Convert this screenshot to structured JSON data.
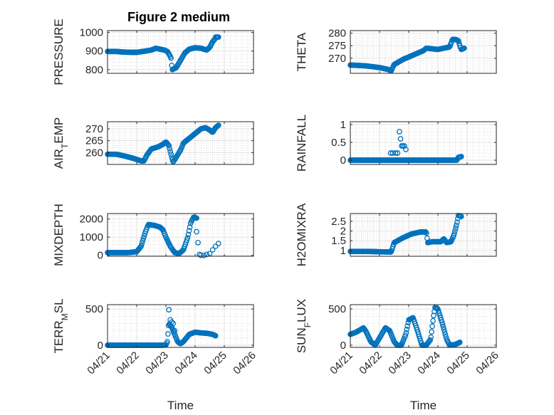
{
  "figure": {
    "title": "Figure 2 medium"
  },
  "chart_data": [
    {
      "type": "scatter",
      "id": "pressure",
      "title": "Figure 2 medium",
      "ylabel": "PRESSURE",
      "xlabel": "",
      "xlim": [
        0,
        5
      ],
      "ylim": [
        780,
        1010
      ],
      "yticks": [
        800,
        900,
        1000
      ],
      "ytick_labels": [
        "800",
        "900",
        "1000"
      ],
      "xtick_labels": [],
      "grid": true,
      "color": "#0072BD",
      "anchors": [
        [
          0,
          898
        ],
        [
          0.3,
          898
        ],
        [
          0.5,
          895
        ],
        [
          0.8,
          893
        ],
        [
          1.0,
          893
        ],
        [
          1.3,
          900
        ],
        [
          1.5,
          905
        ],
        [
          1.65,
          915
        ],
        [
          1.8,
          910
        ],
        [
          1.95,
          905
        ],
        [
          2.05,
          898
        ],
        [
          2.12,
          880
        ],
        [
          2.18,
          860
        ],
        [
          2.2,
          820
        ],
        [
          2.22,
          800
        ],
        [
          2.35,
          810
        ],
        [
          2.5,
          850
        ],
        [
          2.65,
          890
        ],
        [
          2.8,
          910
        ],
        [
          3.0,
          918
        ],
        [
          3.2,
          915
        ],
        [
          3.4,
          905
        ],
        [
          3.5,
          920
        ],
        [
          3.6,
          950
        ],
        [
          3.68,
          965
        ],
        [
          3.7,
          975
        ],
        [
          3.8,
          975
        ]
      ],
      "count": 160
    },
    {
      "type": "scatter",
      "id": "theta",
      "ylabel": "THETA",
      "xlabel": "",
      "xlim": [
        0,
        5
      ],
      "ylim": [
        264,
        281
      ],
      "yticks": [
        270,
        275,
        280
      ],
      "ytick_labels": [
        "270",
        "275",
        "280"
      ],
      "xtick_labels": [],
      "grid": true,
      "color": "#0072BD",
      "anchors": [
        [
          0,
          267.3
        ],
        [
          0.5,
          267
        ],
        [
          1.0,
          266.3
        ],
        [
          1.3,
          265.5
        ],
        [
          1.4,
          265
        ],
        [
          1.5,
          267.5
        ],
        [
          1.8,
          269.5
        ],
        [
          2.2,
          271.5
        ],
        [
          2.5,
          273
        ],
        [
          2.6,
          274
        ],
        [
          3.0,
          273.5
        ],
        [
          3.4,
          274.5
        ],
        [
          3.5,
          277.5
        ],
        [
          3.6,
          277.5
        ],
        [
          3.7,
          277
        ],
        [
          3.75,
          275
        ],
        [
          3.8,
          273.5
        ],
        [
          3.9,
          274
        ]
      ],
      "count": 160
    },
    {
      "type": "scatter",
      "id": "airtemp",
      "ylabel": "AIR_TEMP",
      "xlabel": "",
      "xlim": [
        0,
        5
      ],
      "ylim": [
        255,
        273
      ],
      "yticks": [
        260,
        265,
        270
      ],
      "ytick_labels": [
        "260",
        "265",
        "270"
      ],
      "xtick_labels": [],
      "grid": true,
      "color": "#0072BD",
      "anchors": [
        [
          0,
          259.3
        ],
        [
          0.3,
          259.3
        ],
        [
          0.6,
          258.5
        ],
        [
          0.9,
          257.5
        ],
        [
          1.15,
          256.5
        ],
        [
          1.25,
          256.5
        ],
        [
          1.35,
          259
        ],
        [
          1.5,
          261.5
        ],
        [
          1.75,
          262.5
        ],
        [
          1.9,
          263.5
        ],
        [
          2.0,
          264.5
        ],
        [
          2.1,
          263
        ],
        [
          2.2,
          258
        ],
        [
          2.25,
          256
        ],
        [
          2.35,
          258
        ],
        [
          2.5,
          261
        ],
        [
          2.6,
          264
        ],
        [
          2.8,
          266
        ],
        [
          3.0,
          268
        ],
        [
          3.2,
          270
        ],
        [
          3.35,
          270.5
        ],
        [
          3.5,
          269.5
        ],
        [
          3.6,
          268.5
        ],
        [
          3.7,
          270.5
        ],
        [
          3.8,
          271.5
        ]
      ],
      "count": 160
    },
    {
      "type": "scatter",
      "id": "rainfall",
      "ylabel": "RAINFALL",
      "xlabel": "",
      "xlim": [
        0,
        5
      ],
      "ylim": [
        -0.12,
        1.08
      ],
      "yticks": [
        0,
        0.5,
        1
      ],
      "ytick_labels": [
        "0",
        "0.5",
        "1"
      ],
      "xtick_labels": [],
      "grid": true,
      "color": "#0072BD",
      "anchors": [
        [
          0,
          0
        ],
        [
          3.65,
          0
        ],
        [
          3.7,
          0.08
        ],
        [
          3.8,
          0.1
        ]
      ],
      "count": 150,
      "extra_points": [
        [
          1.38,
          0.2
        ],
        [
          1.45,
          0.2
        ],
        [
          1.55,
          0.2
        ],
        [
          1.62,
          0.2
        ],
        [
          1.68,
          0.8
        ],
        [
          1.72,
          0.6
        ],
        [
          1.76,
          0.4
        ],
        [
          1.8,
          0.4
        ],
        [
          1.85,
          0.4
        ],
        [
          1.9,
          0.3
        ],
        [
          1.64,
          0.0
        ],
        [
          1.75,
          0.0
        ]
      ]
    },
    {
      "type": "scatter",
      "id": "mixdepth",
      "ylabel": "MIXDEPTH",
      "xlabel": "",
      "xlim": [
        0,
        5
      ],
      "ylim": [
        -50,
        2300
      ],
      "yticks": [
        0,
        1000,
        2000
      ],
      "ytick_labels": [
        "0",
        "1000",
        "2000"
      ],
      "xtick_labels": [],
      "grid": true,
      "color": "#0072BD",
      "anchors": [
        [
          0,
          150
        ],
        [
          0.7,
          150
        ],
        [
          1.0,
          200
        ],
        [
          1.15,
          500
        ],
        [
          1.3,
          1300
        ],
        [
          1.4,
          1700
        ],
        [
          1.6,
          1650
        ],
        [
          1.8,
          1550
        ],
        [
          1.9,
          1400
        ],
        [
          2.0,
          1000
        ],
        [
          2.15,
          500
        ],
        [
          2.3,
          150
        ],
        [
          2.45,
          100
        ],
        [
          2.6,
          300
        ],
        [
          2.75,
          1000
        ],
        [
          2.85,
          1800
        ],
        [
          2.95,
          2100
        ],
        [
          3.05,
          2050
        ]
      ],
      "count": 120,
      "extra_points": [
        [
          3.05,
          1300
        ],
        [
          3.1,
          700
        ],
        [
          3.15,
          50
        ],
        [
          3.2,
          0
        ],
        [
          3.3,
          0
        ],
        [
          3.4,
          50
        ],
        [
          3.5,
          100
        ],
        [
          3.6,
          300
        ],
        [
          3.7,
          500
        ],
        [
          3.8,
          650
        ]
      ]
    },
    {
      "type": "scatter",
      "id": "h2omixra",
      "ylabel": "H2OMIXRA",
      "xlabel": "",
      "xlim": [
        0,
        5
      ],
      "ylim": [
        0.7,
        2.9
      ],
      "yticks": [
        1,
        1.5,
        2,
        2.5
      ],
      "ytick_labels": [
        "1",
        "1.5",
        "2",
        "2.5"
      ],
      "xtick_labels": [],
      "grid": true,
      "color": "#0072BD",
      "anchors": [
        [
          0,
          0.95
        ],
        [
          0.6,
          0.95
        ],
        [
          1.0,
          0.93
        ],
        [
          1.4,
          0.92
        ],
        [
          1.5,
          1.4
        ],
        [
          1.8,
          1.65
        ],
        [
          2.1,
          1.85
        ],
        [
          2.4,
          1.95
        ],
        [
          2.6,
          1.95
        ],
        [
          2.65,
          1.4
        ],
        [
          2.8,
          1.45
        ],
        [
          3.1,
          1.45
        ],
        [
          3.2,
          1.6
        ],
        [
          3.3,
          1.4
        ],
        [
          3.45,
          1.45
        ],
        [
          3.55,
          1.8
        ],
        [
          3.65,
          2.4
        ],
        [
          3.7,
          2.8
        ],
        [
          3.8,
          2.75
        ]
      ],
      "count": 160
    },
    {
      "type": "scatter",
      "id": "terrmsl",
      "ylabel": "TERR_MSL",
      "xlabel": "Time",
      "xlim": [
        0,
        5
      ],
      "ylim": [
        -30,
        560
      ],
      "yticks": [
        0,
        500
      ],
      "ytick_labels": [
        "0",
        "500"
      ],
      "xtick_labels": [
        "04/21",
        "04/22",
        "04/23",
        "04/24",
        "04/25",
        "04/26"
      ],
      "grid": true,
      "color": "#0072BD",
      "anchors": [
        [
          0,
          0
        ],
        [
          1.9,
          0
        ],
        [
          2.0,
          5
        ],
        [
          2.05,
          50
        ],
        [
          2.1,
          300
        ],
        [
          2.2,
          250
        ],
        [
          2.3,
          150
        ],
        [
          2.4,
          50
        ],
        [
          2.5,
          20
        ],
        [
          2.6,
          50
        ],
        [
          2.8,
          150
        ],
        [
          3.0,
          180
        ],
        [
          3.2,
          170
        ],
        [
          3.4,
          165
        ],
        [
          3.6,
          150
        ],
        [
          3.7,
          130
        ]
      ],
      "count": 160,
      "extra_points": [
        [
          2.1,
          490
        ],
        [
          2.15,
          350
        ],
        [
          2.2,
          320
        ],
        [
          2.25,
          300
        ],
        [
          2.3,
          200
        ]
      ]
    },
    {
      "type": "scatter",
      "id": "sunflux",
      "ylabel": "SUN_FLUX",
      "xlabel": "Time",
      "xlim": [
        0,
        5
      ],
      "ylim": [
        -30,
        560
      ],
      "yticks": [
        0,
        500
      ],
      "ytick_labels": [
        "0",
        "500"
      ],
      "xtick_labels": [
        "04/21",
        "04/22",
        "04/23",
        "04/24",
        "04/25",
        "04/26"
      ],
      "grid": true,
      "color": "#0072BD",
      "anchors": [
        [
          0,
          150
        ],
        [
          0.2,
          180
        ],
        [
          0.45,
          240
        ],
        [
          0.55,
          180
        ],
        [
          0.7,
          50
        ],
        [
          0.85,
          0
        ],
        [
          1.0,
          100
        ],
        [
          1.2,
          240
        ],
        [
          1.35,
          200
        ],
        [
          1.5,
          50
        ],
        [
          1.6,
          0
        ],
        [
          1.75,
          0
        ],
        [
          1.9,
          150
        ],
        [
          2.0,
          350
        ],
        [
          2.15,
          380
        ],
        [
          2.3,
          200
        ],
        [
          2.45,
          0
        ],
        [
          2.6,
          0
        ],
        [
          2.75,
          80
        ],
        [
          2.85,
          400
        ],
        [
          2.9,
          520
        ],
        [
          3.0,
          500
        ],
        [
          3.15,
          300
        ],
        [
          3.3,
          80
        ],
        [
          3.4,
          0
        ],
        [
          3.6,
          10
        ],
        [
          3.75,
          40
        ]
      ],
      "count": 160
    }
  ]
}
